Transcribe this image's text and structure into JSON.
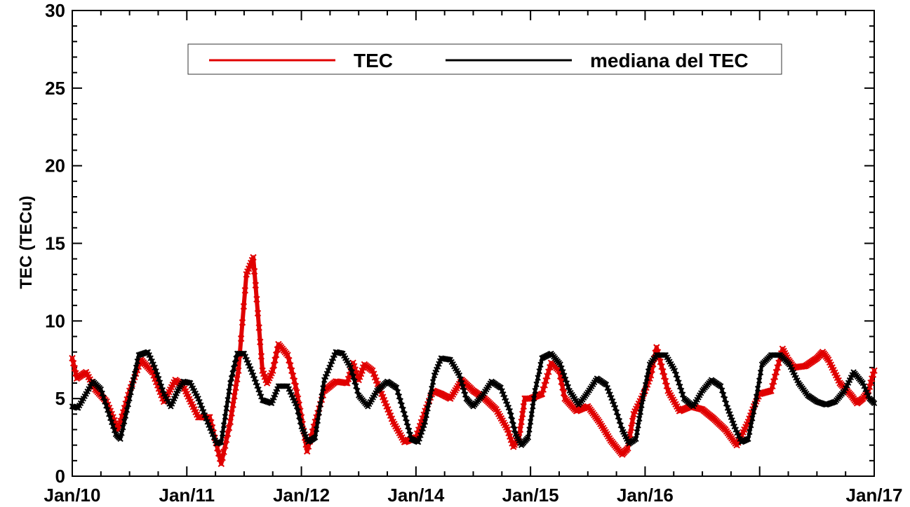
{
  "chart_data": {
    "type": "line",
    "title": "",
    "xlabel": "",
    "ylabel": "TEC (TECu)",
    "ylim": [
      0,
      30
    ],
    "yticks": [
      0,
      5,
      10,
      15,
      20,
      25,
      30
    ],
    "xlim": [
      0,
      7
    ],
    "x_tick_positions": [
      0,
      1,
      2,
      3,
      4,
      5,
      6,
      7
    ],
    "x_tick_labels": [
      "Jan/10",
      "Jan/11",
      "Jan/12",
      "Jan/14",
      "Jan/15",
      "Jan/16",
      "Jan/17"
    ],
    "x_tick_label_indices": [
      0,
      1,
      2,
      3,
      4,
      5,
      7
    ],
    "grid": false,
    "legend_position": "top-right",
    "series": [
      {
        "name": "TEC",
        "color": "#e00000",
        "style": "dense-markers",
        "x": [
          0,
          0.04,
          0.12,
          0.2,
          0.3,
          0.4,
          0.5,
          0.6,
          0.7,
          0.8,
          0.9,
          0.97,
          1.0,
          1.1,
          1.2,
          1.3,
          1.38,
          1.45,
          1.52,
          1.58,
          1.62,
          1.66,
          1.7,
          1.75,
          1.8,
          1.88,
          1.95,
          2.0,
          2.05,
          2.12,
          2.2,
          2.3,
          2.4,
          2.45,
          2.5,
          2.55,
          2.62,
          2.7,
          2.8,
          2.9,
          3.0,
          3.08,
          3.15,
          3.22,
          3.3,
          3.4,
          3.5,
          3.6,
          3.7,
          3.8,
          3.85,
          3.9,
          3.95,
          4.0,
          4.1,
          4.18,
          4.25,
          4.3,
          4.4,
          4.5,
          4.6,
          4.7,
          4.8,
          4.85,
          4.9,
          5.0,
          5.05,
          5.1,
          5.2,
          5.3,
          5.4,
          5.5,
          5.6,
          5.7,
          5.8,
          5.9,
          5.95,
          6.0,
          6.1,
          6.2,
          6.25,
          6.3,
          6.4,
          6.5,
          6.55,
          6.6,
          6.7,
          6.8,
          6.85,
          6.9,
          6.95,
          7.0
        ],
        "y": [
          7.6,
          6.3,
          6.7,
          5.6,
          4.8,
          3.0,
          5.5,
          7.5,
          6.7,
          4.8,
          6.2,
          5.8,
          5.3,
          3.8,
          3.8,
          0.8,
          3.5,
          6.8,
          13.0,
          14.1,
          10.5,
          6.8,
          6.0,
          6.8,
          8.5,
          7.8,
          5.8,
          3.8,
          1.6,
          3.5,
          5.5,
          6.1,
          6.0,
          7.3,
          6.2,
          7.2,
          6.8,
          5.3,
          3.5,
          2.2,
          2.5,
          4.2,
          5.5,
          5.3,
          5.0,
          6.2,
          5.5,
          5.0,
          4.3,
          3.0,
          1.9,
          2.5,
          5.0,
          5.0,
          5.3,
          7.3,
          6.8,
          5.0,
          4.2,
          4.5,
          3.5,
          2.3,
          1.4,
          1.8,
          4.0,
          5.5,
          6.5,
          8.3,
          5.5,
          4.2,
          4.5,
          4.3,
          3.7,
          3.0,
          2.0,
          3.5,
          4.5,
          5.3,
          5.5,
          8.2,
          7.5,
          7.0,
          7.1,
          7.6,
          8.0,
          7.5,
          6.0,
          5.2,
          4.7,
          5.0,
          5.5,
          6.8
        ]
      },
      {
        "name": "mediana del TEC",
        "color": "#000000",
        "style": "dense-markers",
        "x": [
          0,
          0.05,
          0.12,
          0.18,
          0.25,
          0.32,
          0.38,
          0.42,
          0.5,
          0.58,
          0.66,
          0.72,
          0.8,
          0.86,
          0.92,
          0.97,
          1.03,
          1.1,
          1.18,
          1.26,
          1.3,
          1.38,
          1.44,
          1.5,
          1.58,
          1.66,
          1.74,
          1.8,
          1.88,
          1.96,
          2.0,
          2.06,
          2.12,
          2.2,
          2.3,
          2.36,
          2.43,
          2.5,
          2.58,
          2.66,
          2.75,
          2.83,
          2.9,
          2.96,
          3.02,
          3.08,
          3.16,
          3.22,
          3.3,
          3.38,
          3.44,
          3.5,
          3.58,
          3.66,
          3.74,
          3.82,
          3.87,
          3.92,
          3.98,
          4.04,
          4.1,
          4.18,
          4.26,
          4.34,
          4.42,
          4.5,
          4.58,
          4.66,
          4.74,
          4.8,
          4.86,
          4.92,
          4.98,
          5.04,
          5.1,
          5.18,
          5.26,
          5.34,
          5.42,
          5.5,
          5.58,
          5.66,
          5.72,
          5.78,
          5.84,
          5.9,
          5.96,
          6.02,
          6.1,
          6.18,
          6.26,
          6.34,
          6.42,
          6.5,
          6.58,
          6.66,
          6.74,
          6.82,
          6.9,
          6.96,
          7.0
        ],
        "y": [
          4.5,
          4.4,
          5.3,
          6.1,
          5.6,
          4.0,
          2.7,
          2.4,
          5.0,
          7.8,
          8.0,
          7.0,
          5.3,
          4.5,
          5.5,
          6.1,
          6.0,
          5.0,
          3.5,
          2.1,
          2.2,
          6.0,
          7.9,
          7.9,
          6.5,
          4.9,
          4.7,
          5.8,
          5.8,
          4.5,
          3.2,
          2.2,
          2.5,
          6.2,
          8.0,
          7.9,
          7.0,
          5.2,
          4.5,
          5.5,
          6.1,
          5.7,
          4.0,
          2.4,
          2.2,
          3.5,
          6.5,
          7.6,
          7.5,
          6.5,
          5.0,
          4.5,
          5.2,
          6.1,
          5.7,
          4.2,
          2.7,
          2.0,
          2.5,
          5.5,
          7.6,
          7.9,
          7.2,
          5.5,
          4.6,
          5.4,
          6.3,
          5.9,
          4.4,
          3.0,
          2.1,
          2.4,
          5.0,
          7.2,
          7.8,
          7.8,
          6.8,
          5.0,
          4.5,
          5.5,
          6.2,
          5.8,
          4.4,
          3.2,
          2.2,
          2.4,
          4.6,
          7.2,
          7.8,
          7.8,
          7.2,
          6.0,
          5.2,
          4.8,
          4.6,
          4.8,
          5.5,
          6.7,
          6.0,
          5.0,
          4.7
        ]
      }
    ]
  }
}
